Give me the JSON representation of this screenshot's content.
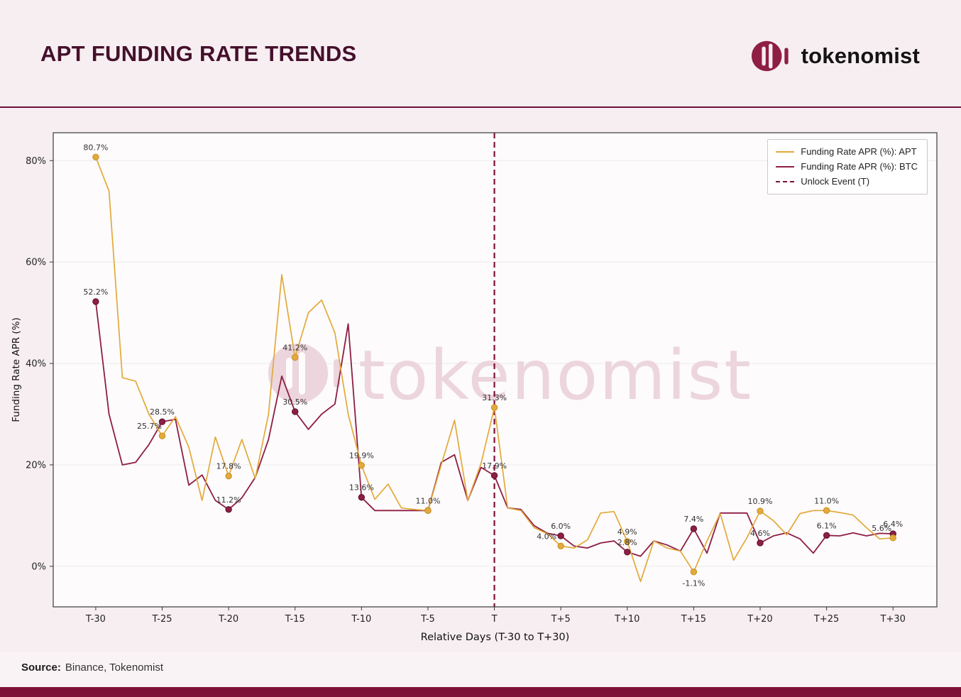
{
  "header": {
    "title": "APT FUNDING RATE TRENDS",
    "brand_name": "tokenomist"
  },
  "watermark": {
    "text": "tokenomist"
  },
  "footer": {
    "source_label": "Source:",
    "source_value": "Binance, Tokenomist"
  },
  "colors": {
    "page_bg": "#F7EEF1",
    "plot_bg": "#FDFBFB",
    "grid": "#ECECEC",
    "spine": "#3A3A3A",
    "apt": "#E3A93C",
    "apt_edge": "#C6921F",
    "btc": "#8E1E44",
    "btc_edge": "#5E0F2E",
    "unlock": "#7C0F3C",
    "watermark": "#ECD5DD",
    "annotation_text": "#333333",
    "tick_text": "#222222"
  },
  "chart_data": {
    "type": "line",
    "title": "APT Funding Rate Trends",
    "xlabel": "Relative Days (T-30 to T+30)",
    "ylabel": "Funding Rate APR (%)",
    "x_days": {
      "start": -30,
      "end": 30,
      "step": 1
    },
    "xlim": [
      -33.2,
      33.3
    ],
    "ylim": [
      -8,
      85.5
    ],
    "grid": "horizontal",
    "legend_position": "upper right",
    "x_ticks": [
      {
        "day": -30,
        "label": "T-30"
      },
      {
        "day": -25,
        "label": "T-25"
      },
      {
        "day": -20,
        "label": "T-20"
      },
      {
        "day": -15,
        "label": "T-15"
      },
      {
        "day": -10,
        "label": "T-10"
      },
      {
        "day": -5,
        "label": "T-5"
      },
      {
        "day": 0,
        "label": "T"
      },
      {
        "day": 5,
        "label": "T+5"
      },
      {
        "day": 10,
        "label": "T+10"
      },
      {
        "day": 15,
        "label": "T+15"
      },
      {
        "day": 20,
        "label": "T+20"
      },
      {
        "day": 25,
        "label": "T+25"
      },
      {
        "day": 30,
        "label": "T+30"
      }
    ],
    "y_ticks": [
      {
        "value": 0,
        "label": "0%"
      },
      {
        "value": 20,
        "label": "20%"
      },
      {
        "value": 40,
        "label": "40%"
      },
      {
        "value": 60,
        "label": "60%"
      },
      {
        "value": 80,
        "label": "80%"
      }
    ],
    "series": [
      {
        "name": "Funding Rate APR (%): APT",
        "color": "#E3A93C",
        "values": [
          80.7,
          74.0,
          37.2,
          36.5,
          30.0,
          25.7,
          29.5,
          23.5,
          13.0,
          25.5,
          17.8,
          25.0,
          17.3,
          30.0,
          57.5,
          41.2,
          50.0,
          52.5,
          46.0,
          30.0,
          19.9,
          13.2,
          16.2,
          11.5,
          11.2,
          11.0,
          20.0,
          28.8,
          13.0,
          20.3,
          31.3,
          11.5,
          11.0,
          7.6,
          6.4,
          4.0,
          3.6,
          5.2,
          10.5,
          10.8,
          4.9,
          -3.0,
          5.0,
          3.6,
          3.0,
          -1.1,
          5.0,
          10.4,
          1.2,
          5.6,
          10.9,
          9.0,
          6.2,
          10.4,
          11.0,
          11.0,
          10.6,
          10.1,
          7.6,
          5.4,
          5.6
        ]
      },
      {
        "name": "Funding Rate APR (%): BTC",
        "color": "#8E1E44",
        "values": [
          52.2,
          30.0,
          20.0,
          20.5,
          24.0,
          28.5,
          29.0,
          16.0,
          18.0,
          13.0,
          11.2,
          13.5,
          17.5,
          25.0,
          37.5,
          30.5,
          27.0,
          30.0,
          32.0,
          47.8,
          13.6,
          11.0,
          11.0,
          11.0,
          11.0,
          11.0,
          20.5,
          22.0,
          13.0,
          19.5,
          17.9,
          11.5,
          11.2,
          8.0,
          6.5,
          6.0,
          4.0,
          3.6,
          4.6,
          5.0,
          2.8,
          2.0,
          5.0,
          4.2,
          3.0,
          7.4,
          2.6,
          10.5,
          10.5,
          10.5,
          4.6,
          6.0,
          6.6,
          5.4,
          2.6,
          6.1,
          6.0,
          6.6,
          6.0,
          6.5,
          6.4
        ]
      }
    ],
    "unlock": {
      "label": "Unlock Event (T)",
      "day": 0
    },
    "marker_days": [
      -30,
      -25,
      -20,
      -15,
      -10,
      -5,
      0,
      5,
      10,
      15,
      20,
      25,
      30
    ],
    "annotations": [
      {
        "series": "APT",
        "day": -30,
        "value": 80.7,
        "label": "80.7%"
      },
      {
        "series": "APT",
        "day": -25,
        "value": 25.7,
        "label": "25.7%",
        "dx": -18
      },
      {
        "series": "APT",
        "day": -20,
        "value": 17.8,
        "label": "17.8%"
      },
      {
        "series": "APT",
        "day": -15,
        "value": 41.2,
        "label": "41.2%"
      },
      {
        "series": "APT",
        "day": -10,
        "value": 19.9,
        "label": "19.9%"
      },
      {
        "series": "APT",
        "day": -5,
        "value": 11.0,
        "label": "11.0%"
      },
      {
        "series": "APT",
        "day": 0,
        "value": 31.3,
        "label": "31.3%"
      },
      {
        "series": "APT",
        "day": 5,
        "value": 4.0,
        "label": "4.0%",
        "dx": -20
      },
      {
        "series": "APT",
        "day": 10,
        "value": 4.9,
        "label": "4.9%"
      },
      {
        "series": "APT",
        "day": 15,
        "value": -1.1,
        "label": "-1.1%",
        "pos": "below"
      },
      {
        "series": "APT",
        "day": 20,
        "value": 10.9,
        "label": "10.9%"
      },
      {
        "series": "APT",
        "day": 25,
        "value": 11.0,
        "label": "11.0%"
      },
      {
        "series": "APT",
        "day": 30,
        "value": 5.6,
        "label": "5.6%",
        "dx": -16
      },
      {
        "series": "BTC",
        "day": -30,
        "value": 52.2,
        "label": "52.2%"
      },
      {
        "series": "BTC",
        "day": -25,
        "value": 28.5,
        "label": "28.5%"
      },
      {
        "series": "BTC",
        "day": -20,
        "value": 11.2,
        "label": "11.2%"
      },
      {
        "series": "BTC",
        "day": -15,
        "value": 30.5,
        "label": "30.5%"
      },
      {
        "series": "BTC",
        "day": -10,
        "value": 13.6,
        "label": "13.6%"
      },
      {
        "series": "BTC",
        "day": 0,
        "value": 17.9,
        "label": "17.9%"
      },
      {
        "series": "BTC",
        "day": 5,
        "value": 6.0,
        "label": "6.0%"
      },
      {
        "series": "BTC",
        "day": 10,
        "value": 2.8,
        "label": "2.8%"
      },
      {
        "series": "BTC",
        "day": 15,
        "value": 7.4,
        "label": "7.4%"
      },
      {
        "series": "BTC",
        "day": 20,
        "value": 4.6,
        "label": "4.6%"
      },
      {
        "series": "BTC",
        "day": 25,
        "value": 6.1,
        "label": "6.1%"
      },
      {
        "series": "BTC",
        "day": 30,
        "value": 6.4,
        "label": "6.4%"
      }
    ]
  }
}
